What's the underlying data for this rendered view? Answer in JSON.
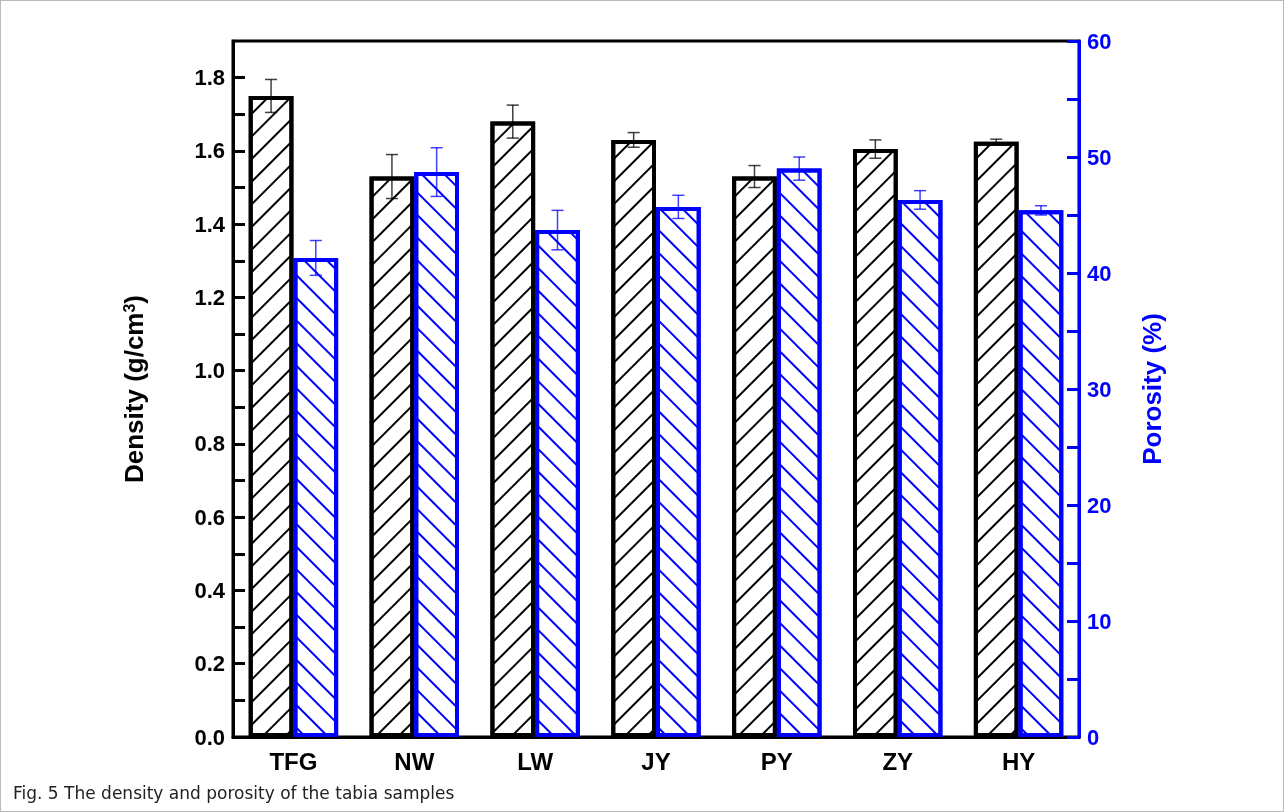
{
  "chart_data": {
    "type": "bar",
    "categories": [
      "TFG",
      "NW",
      "LW",
      "JY",
      "PY",
      "ZY",
      "HY"
    ],
    "series": [
      {
        "color": "#000000",
        "values": [
          1.75,
          1.53,
          1.68,
          1.63,
          1.53,
          1.605,
          1.625
        ],
        "errors": [
          0.045,
          0.06,
          0.045,
          0.02,
          0.03,
          0.025,
          0.007
        ]
      },
      {
        "color": "#0000ff",
        "axis": "y2",
        "values": [
          41.3,
          48.7,
          43.7,
          45.7,
          49.0,
          46.3,
          45.4
        ],
        "errors": [
          1.5,
          2.1,
          1.7,
          1.0,
          1.0,
          0.8,
          0.4
        ]
      }
    ],
    "ylabel": "Density (g/cm$^{3}$)",
    "y2label": "Porosity (%)",
    "ylim": [
      0,
      1.9
    ],
    "yticks": [
      {
        "value": 0,
        "label": "0.0"
      },
      {
        "value": 0.1,
        "label": null
      },
      0.2,
      {
        "value": 0.3,
        "label": null
      },
      0.4,
      {
        "value": 0.5,
        "label": null
      },
      0.6,
      {
        "value": 0.7,
        "label": null
      },
      0.8,
      {
        "value": 0.9,
        "label": null
      },
      {
        "value": 1.0,
        "label": "1.0"
      },
      {
        "value": 1.1,
        "label": null
      },
      1.2,
      {
        "value": 1.3,
        "label": null
      },
      1.4,
      {
        "value": 1.5,
        "label": null
      },
      1.6,
      {
        "value": 1.7,
        "label": null
      },
      1.8
    ],
    "y2lim": [
      0,
      60
    ],
    "y2ticks": [
      0,
      {
        "value": 5,
        "label": null
      },
      10,
      {
        "value": 15,
        "label": null
      },
      20,
      {
        "value": 25,
        "label": null
      },
      30,
      {
        "value": 35,
        "label": null
      },
      40,
      {
        "value": 45,
        "label": null
      },
      50,
      {
        "value": 55,
        "label": null
      },
      60
    ],
    "grid": false,
    "annotations": [
      "Fig. 5 The density and porosity of the tabia samples"
    ]
  }
}
